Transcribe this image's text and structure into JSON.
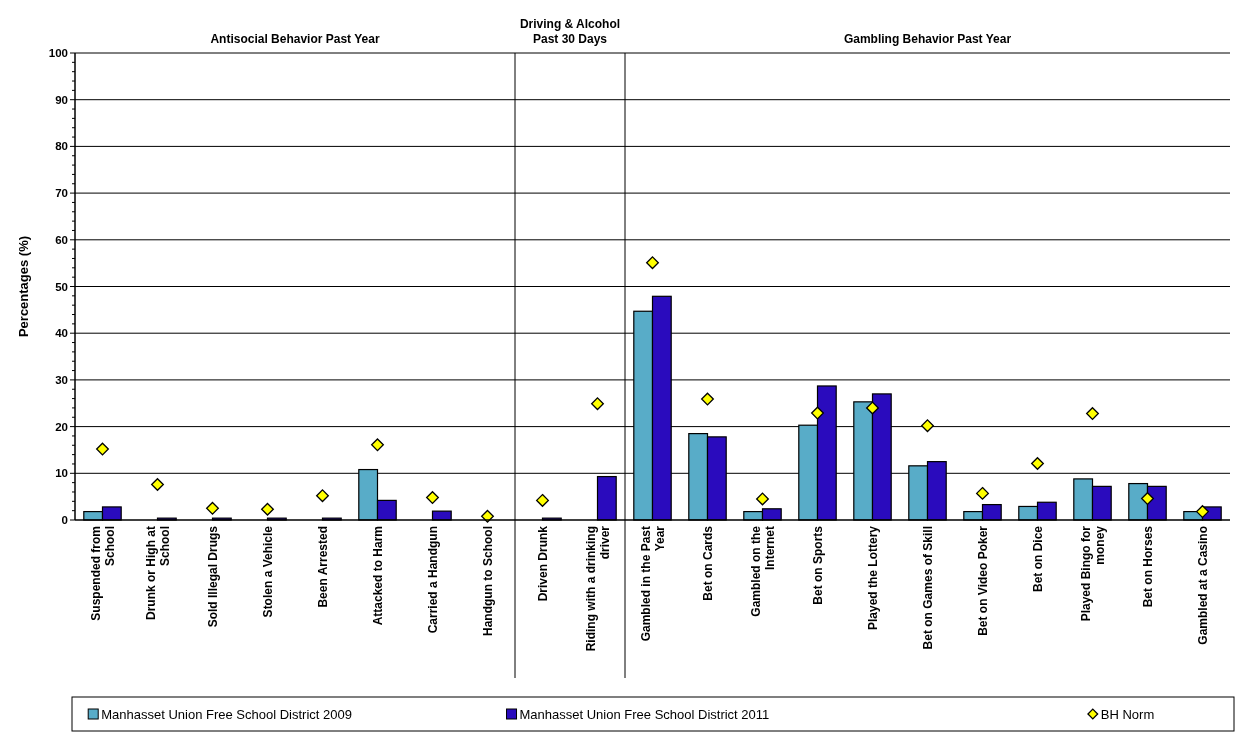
{
  "chart_data": {
    "type": "bar",
    "ylabel": "Percentages (%)",
    "categories": [
      "Suspended from School",
      "Drunk or High at School",
      "Sold Illegal Drugs",
      "Stolen a Vehicle",
      "Been Arrested",
      "Attacked to Harm",
      "Carried a Handgun",
      "Handgun to School",
      "Driven Drunk",
      "Riding with a drinking driver",
      "Gambled in the Past Year",
      "Bet on Cards",
      "Gambled on the Internet",
      "Bet on Sports",
      "Played the Lottery",
      "Bet on Games of Skill",
      "Bet on Video Poker",
      "Bet on Dice",
      "Played Bingo for money",
      "Bet on Horses",
      "Gambled at a Casino"
    ],
    "series": [
      {
        "name": "Manhasset Union Free School District 2009",
        "color": "#58acc8",
        "values": [
          1.8,
          0,
          0,
          0,
          0,
          10.8,
          0,
          0,
          0,
          0,
          44.7,
          18.5,
          1.8,
          20.3,
          25.3,
          11.6,
          1.8,
          2.9,
          8.8,
          7.8,
          1.8
        ]
      },
      {
        "name": "Manhasset Union Free School District 2011",
        "color": "#2a0bbd",
        "values": [
          2.8,
          0.4,
          0.4,
          0.4,
          0.4,
          4.2,
          1.9,
          0,
          0.4,
          9.3,
          47.9,
          17.8,
          2.4,
          28.7,
          27.0,
          12.5,
          3.3,
          3.8,
          7.2,
          7.2,
          2.8
        ]
      },
      {
        "name": "BH Norm",
        "type": "scatter",
        "color": "#ffff00",
        "values": [
          15.2,
          7.6,
          2.5,
          2.3,
          5.2,
          16.1,
          4.8,
          0.8,
          4.2,
          24.9,
          55.1,
          25.9,
          4.5,
          22.9,
          24.0,
          20.2,
          5.7,
          12.1,
          22.8,
          4.6,
          1.8
        ]
      }
    ],
    "marker": "diamond",
    "ylim": [
      0,
      100
    ],
    "yticks": [
      0,
      {
        "value": 2,
        "label": null
      },
      {
        "value": 4,
        "label": null
      },
      {
        "value": 6,
        "label": null
      },
      {
        "value": 8,
        "label": null
      },
      10,
      {
        "value": 12,
        "label": null
      },
      {
        "value": 14,
        "label": null
      },
      {
        "value": 16,
        "label": null
      },
      {
        "value": 18,
        "label": null
      },
      20,
      {
        "value": 22,
        "label": null
      },
      {
        "value": 24,
        "label": null
      },
      {
        "value": 26,
        "label": null
      },
      {
        "value": 28,
        "label": null
      },
      30,
      {
        "value": 32,
        "label": null
      },
      {
        "value": 34,
        "label": null
      },
      {
        "value": 36,
        "label": null
      },
      {
        "value": 38,
        "label": null
      },
      40,
      {
        "value": 42,
        "label": null
      },
      {
        "value": 44,
        "label": null
      },
      {
        "value": 46,
        "label": null
      },
      {
        "value": 48,
        "label": null
      },
      50,
      {
        "value": 52,
        "label": null
      },
      {
        "value": 54,
        "label": null
      },
      {
        "value": 56,
        "label": null
      },
      {
        "value": 58,
        "label": null
      },
      60,
      {
        "value": 62,
        "label": null
      },
      {
        "value": 64,
        "label": null
      },
      {
        "value": 66,
        "label": null
      },
      {
        "value": 68,
        "label": null
      },
      70,
      {
        "value": 72,
        "label": null
      },
      {
        "value": 74,
        "label": null
      },
      {
        "value": 76,
        "label": null
      },
      {
        "value": 78,
        "label": null
      },
      80,
      {
        "value": 82,
        "label": null
      },
      {
        "value": 84,
        "label": null
      },
      {
        "value": 86,
        "label": null
      },
      {
        "value": 88,
        "label": null
      },
      90,
      {
        "value": 92,
        "label": null
      },
      {
        "value": 94,
        "label": null
      },
      {
        "value": 96,
        "label": null
      },
      {
        "value": 98,
        "label": null
      },
      100
    ],
    "grid": "y",
    "legend": "bottom",
    "annotations": [
      "Antisocial Behavior Past Year",
      "Driving & Alcohol Past 30 Days",
      "Gambling Behavior Past Year"
    ]
  }
}
